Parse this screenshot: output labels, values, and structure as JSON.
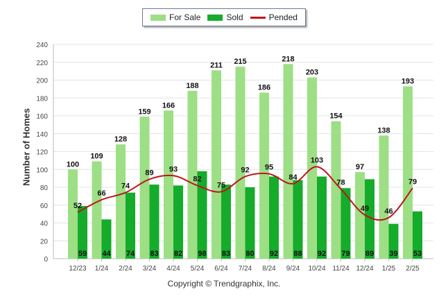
{
  "legend": {
    "for_sale": "For Sale",
    "sold": "Sold",
    "pended": "Pended"
  },
  "copyright": "Copyright © Trendgraphix, Inc.",
  "colors": {
    "for_sale": "#9ddf85",
    "sold": "#15ab2b",
    "pended": "#c0141b",
    "grid": "#e4e4e4"
  },
  "chart_data": {
    "type": "bar",
    "ylabel": "Number of Homes",
    "xlabel": "",
    "ylim": [
      0,
      240
    ],
    "yticks": [
      0,
      20,
      40,
      60,
      80,
      100,
      120,
      140,
      160,
      180,
      200,
      220,
      240
    ],
    "grid": true,
    "legend_position": "top-center",
    "categories": [
      "12/23",
      "1/24",
      "2/24",
      "3/24",
      "4/24",
      "5/24",
      "6/24",
      "7/24",
      "8/24",
      "9/24",
      "10/24",
      "11/24",
      "12/24",
      "1/25",
      "2/25"
    ],
    "series": [
      {
        "name": "For Sale",
        "type": "bar",
        "values": [
          100,
          109,
          128,
          159,
          166,
          188,
          211,
          215,
          186,
          218,
          203,
          154,
          97,
          138,
          193
        ]
      },
      {
        "name": "Sold",
        "type": "bar",
        "values": [
          59,
          44,
          74,
          83,
          82,
          98,
          83,
          80,
          92,
          88,
          92,
          79,
          89,
          39,
          53
        ]
      },
      {
        "name": "Pended",
        "type": "line",
        "values": [
          52,
          66,
          74,
          89,
          93,
          82,
          75,
          92,
          95,
          84,
          103,
          78,
          49,
          46,
          79
        ]
      }
    ]
  }
}
